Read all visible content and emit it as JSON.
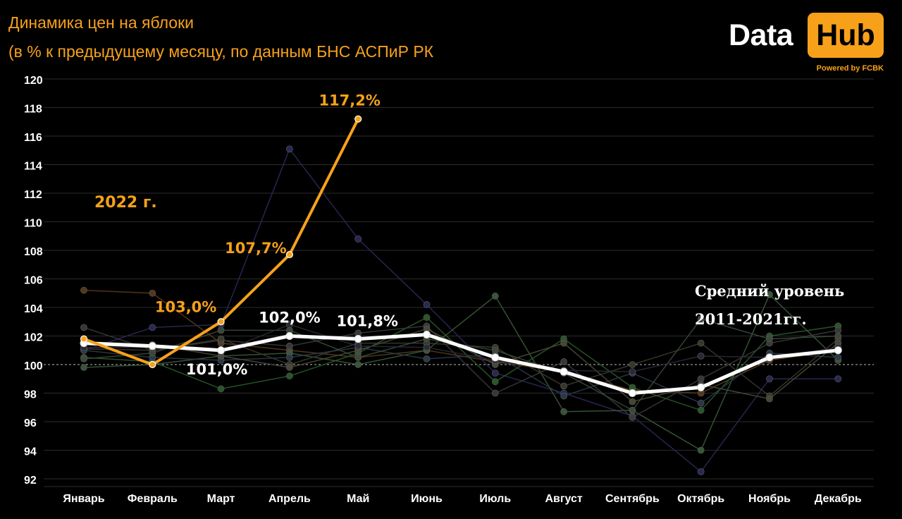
{
  "header": {
    "title_line1": "Динамика цен на яблоки",
    "title_line2": "(в % к предыдущему месяцу, по данным БНС АСПиР РК"
  },
  "logo": {
    "data": "Data",
    "hub": "Hub",
    "powered": "Powered by FCBK"
  },
  "colors": {
    "background": "#000000",
    "accent": "#f7a11a",
    "average": "#ffffff",
    "grid": "#333333"
  },
  "chart_data": {
    "type": "line",
    "categories": [
      "Январь",
      "Февраль",
      "Март",
      "Апрель",
      "Май",
      "Июнь",
      "Июль",
      "Август",
      "Сентябрь",
      "Октябрь",
      "Ноябрь",
      "Декабрь"
    ],
    "y_ticks": [
      92,
      94,
      96,
      98,
      100,
      102,
      104,
      106,
      108,
      110,
      112,
      114,
      116,
      118,
      120
    ],
    "ylim": [
      92,
      120
    ],
    "reference_line": 100,
    "grid": true,
    "series": [
      {
        "name": "2022 г.",
        "color": "#f7a11a",
        "values": [
          101.8,
          100.0,
          103.0,
          107.7,
          117.2,
          null,
          null,
          null,
          null,
          null,
          null,
          null
        ],
        "point_labels": [
          "",
          "",
          "103,0%",
          "107,7%",
          "117,2%",
          "",
          "",
          "",
          "",
          "",
          "",
          ""
        ]
      },
      {
        "name": "Средний уровень 2011-2021гг.",
        "color": "#ffffff",
        "values": [
          101.5,
          101.3,
          101.0,
          102.0,
          101.8,
          102.1,
          100.5,
          99.5,
          98.0,
          98.4,
          100.5,
          101.0
        ],
        "point_labels": [
          "",
          "",
          "101,0%",
          "102,0%",
          "101,8%",
          "",
          "",
          "",
          "",
          "",
          "",
          ""
        ]
      }
    ],
    "background_series": [
      {
        "color": "#5a3a1a",
        "values": [
          105.2,
          105.0,
          101.5,
          101.0,
          100.5,
          101.0,
          100.2,
          99.5,
          98.2,
          98.0,
          100.3,
          101.0
        ]
      },
      {
        "color": "#2a2a5a",
        "values": [
          101.0,
          102.6,
          102.8,
          115.1,
          108.8,
          104.2,
          99.4,
          98.0,
          96.4,
          92.5,
          99.0,
          99.0
        ]
      },
      {
        "color": "#2a5a2a",
        "values": [
          100.5,
          100.2,
          98.3,
          99.2,
          100.8,
          103.3,
          98.8,
          101.8,
          98.4,
          96.8,
          102.0,
          102.7
        ]
      },
      {
        "color": "#3a5a3a",
        "values": [
          99.8,
          100.0,
          100.6,
          100.8,
          100.0,
          101.0,
          104.8,
          96.7,
          96.8,
          94.0,
          104.9,
          100.3
        ]
      },
      {
        "color": "#3a3a3a",
        "values": [
          102.6,
          101.0,
          101.7,
          101.3,
          102.2,
          102.7,
          98.0,
          100.2,
          96.3,
          99.0,
          101.5,
          102.4
        ]
      },
      {
        "color": "#3a3a2a",
        "values": [
          101.1,
          101.0,
          101.8,
          100.0,
          101.5,
          101.5,
          101.2,
          98.5,
          100.0,
          101.5,
          97.8,
          101.8
        ]
      },
      {
        "color": "#2a3a4a",
        "values": [
          101.0,
          100.5,
          100.3,
          100.5,
          101.2,
          100.4,
          100.7,
          97.8,
          99.4,
          97.3,
          100.8,
          100.5
        ]
      },
      {
        "color": "#4a4a3a",
        "values": [
          101.6,
          101.4,
          100.6,
          99.8,
          101.0,
          102.5,
          100.0,
          101.5,
          97.4,
          98.6,
          97.6,
          101.5
        ]
      },
      {
        "color": "#3a4a3a",
        "values": [
          100.4,
          100.8,
          102.4,
          102.4,
          100.5,
          101.8,
          101.0,
          99.4,
          96.8,
          103.2,
          101.8,
          102.0
        ]
      },
      {
        "color": "#2a2a3a",
        "values": [
          101.2,
          101.2,
          100.9,
          102.8,
          101.3,
          101.2,
          100.3,
          99.6,
          99.5,
          100.6,
          100.5,
          101.2
        ]
      }
    ],
    "annotations": {
      "year_2022": "2022 г.",
      "avg_line1": "Средний уровень",
      "avg_line2": "2011-2021гг."
    }
  }
}
